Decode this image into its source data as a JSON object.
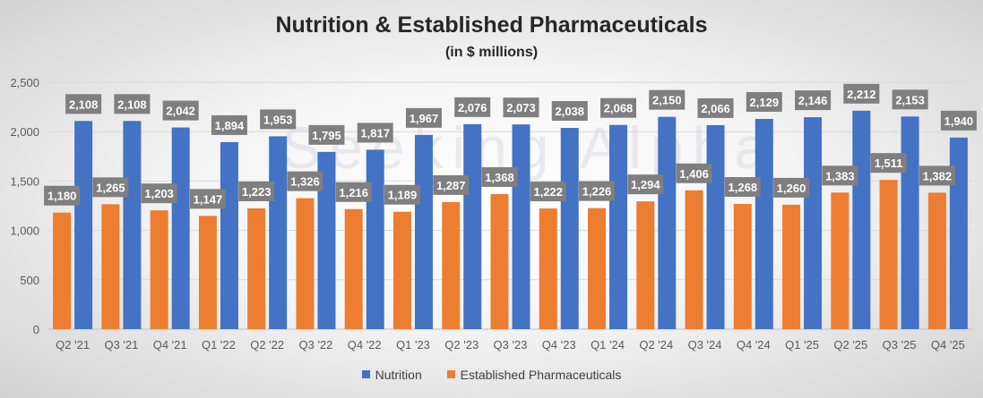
{
  "chart_data": {
    "type": "bar",
    "title": "Nutrition & Established Pharmaceuticals",
    "subtitle": "(in $ millions)",
    "watermark": "Seeking Alpha",
    "xlabel": "",
    "ylabel": "",
    "ylim": [
      0,
      2500
    ],
    "yticks": [
      "0",
      "500",
      "1,000",
      "1,500",
      "2,000",
      "2,500"
    ],
    "yticks_values": [
      0,
      500,
      1000,
      1500,
      2000,
      2500
    ],
    "legend_position": "bottom",
    "categories": [
      "Q2 '21",
      "Q3 '21",
      "Q4 '21",
      "Q1 '22",
      "Q2 '22",
      "Q3 '22",
      "Q4 '22",
      "Q1 '23",
      "Q2 '23",
      "Q3 '23",
      "Q4 '23",
      "Q1 '24",
      "Q2 '24",
      "Q3 '24",
      "Q4 '24",
      "Q1 '25",
      "Q2 '25",
      "Q3 '25",
      "Q4 '25"
    ],
    "series": [
      {
        "name": "Established Pharmaceuticals",
        "color": "#ED7D31",
        "values": [
          1180,
          1265,
          1203,
          1147,
          1223,
          1326,
          1216,
          1189,
          1287,
          1368,
          1222,
          1226,
          1294,
          1406,
          1268,
          1260,
          1383,
          1511,
          1382
        ],
        "labels": [
          "1,180",
          "1,265",
          "1,203",
          "1,147",
          "1,223",
          "1,326",
          "1,216",
          "1,189",
          "1,287",
          "1,368",
          "1,222",
          "1,226",
          "1,294",
          "1,406",
          "1,268",
          "1,260",
          "1,383",
          "1,511",
          "1,382"
        ]
      },
      {
        "name": "Nutrition",
        "color": "#4472C4",
        "values": [
          2108,
          2108,
          2042,
          1894,
          1953,
          1795,
          1817,
          1967,
          2076,
          2073,
          2038,
          2068,
          2150,
          2066,
          2129,
          2146,
          2212,
          2153,
          1940
        ],
        "labels": [
          "2,108",
          "2,108",
          "2,042",
          "1,894",
          "1,953",
          "1,795",
          "1,817",
          "1,967",
          "2,076",
          "2,073",
          "2,038",
          "2,068",
          "2,150",
          "2,066",
          "2,129",
          "2,146",
          "2,212",
          "2,153",
          "1,940"
        ]
      }
    ],
    "legend": [
      {
        "name": "Nutrition",
        "color": "#4472C4"
      },
      {
        "name": "Established Pharmaceuticals",
        "color": "#ED7D31"
      }
    ],
    "label_box_color": "#7F7F7F",
    "label_text_color": "#FFFFFF",
    "axis_text_color": "#595959"
  }
}
